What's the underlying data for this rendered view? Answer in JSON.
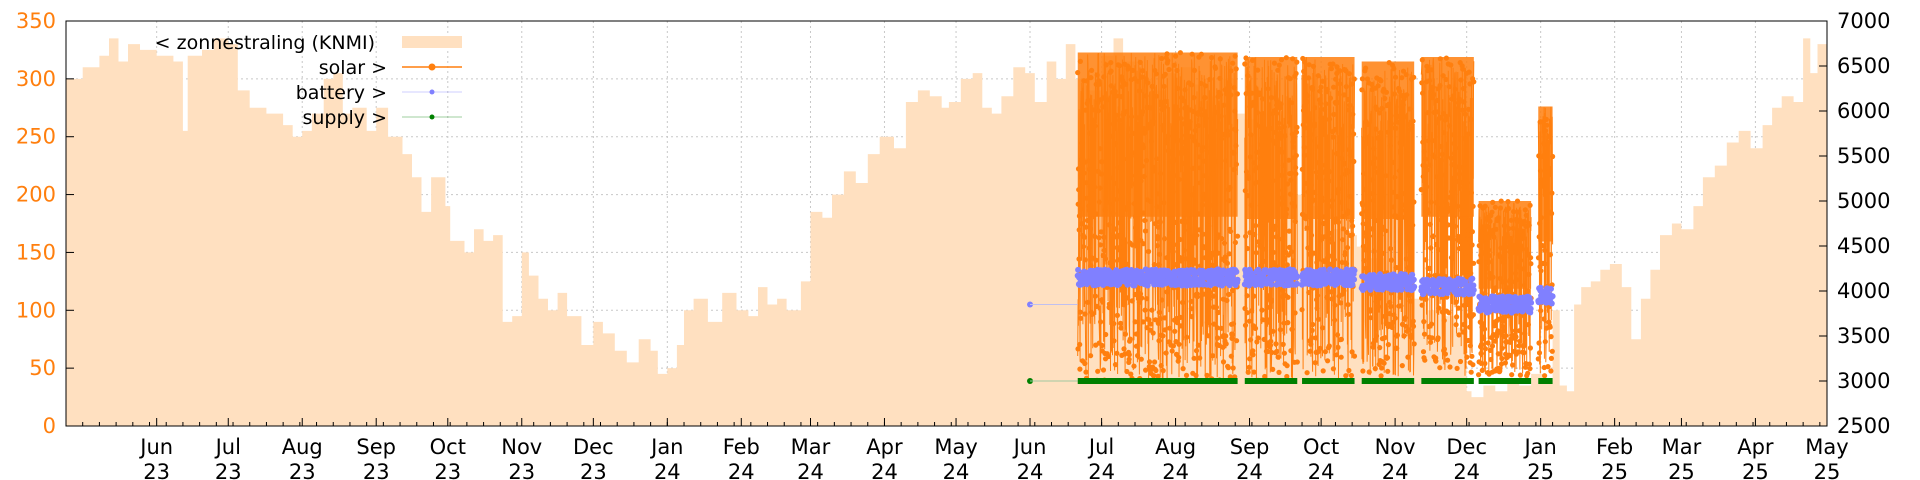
{
  "chart_data": {
    "type": "line",
    "grid": true,
    "legend_position": "top-left",
    "x_range": [
      "2023-04-24",
      "2025-05-01"
    ],
    "y_left": {
      "range": [
        0,
        350
      ],
      "ticks": [
        "0",
        "50",
        "100",
        "150",
        "200",
        "250",
        "300",
        "350"
      ],
      "color": "#ff7f0e"
    },
    "y_right": {
      "range": [
        2500,
        7000
      ],
      "ticks": [
        "2500",
        "3000",
        "3500",
        "4000",
        "4500",
        "5000",
        "5500",
        "6000",
        "6500",
        "7000"
      ]
    },
    "x_ticks": [
      {
        "m": "Jun",
        "y": "23",
        "date": "2023-06-01"
      },
      {
        "m": "Jul",
        "y": "23",
        "date": "2023-07-01"
      },
      {
        "m": "Aug",
        "y": "23",
        "date": "2023-08-01"
      },
      {
        "m": "Sep",
        "y": "23",
        "date": "2023-09-01"
      },
      {
        "m": "Oct",
        "y": "23",
        "date": "2023-10-01"
      },
      {
        "m": "Nov",
        "y": "23",
        "date": "2023-11-01"
      },
      {
        "m": "Dec",
        "y": "23",
        "date": "2023-12-01"
      },
      {
        "m": "Jan",
        "y": "24",
        "date": "2024-01-01"
      },
      {
        "m": "Feb",
        "y": "24",
        "date": "2024-02-01"
      },
      {
        "m": "Mar",
        "y": "24",
        "date": "2024-03-01"
      },
      {
        "m": "Apr",
        "y": "24",
        "date": "2024-04-01"
      },
      {
        "m": "May",
        "y": "24",
        "date": "2024-05-01"
      },
      {
        "m": "Jun",
        "y": "24",
        "date": "2024-06-01"
      },
      {
        "m": "Jul",
        "y": "24",
        "date": "2024-07-01"
      },
      {
        "m": "Aug",
        "y": "24",
        "date": "2024-08-01"
      },
      {
        "m": "Sep",
        "y": "24",
        "date": "2024-09-01"
      },
      {
        "m": "Oct",
        "y": "24",
        "date": "2024-10-01"
      },
      {
        "m": "Nov",
        "y": "24",
        "date": "2024-11-01"
      },
      {
        "m": "Dec",
        "y": "24",
        "date": "2024-12-01"
      },
      {
        "m": "Jan",
        "y": "25",
        "date": "2025-01-01"
      },
      {
        "m": "Feb",
        "y": "25",
        "date": "2025-02-01"
      },
      {
        "m": "Mar",
        "y": "25",
        "date": "2025-03-01"
      },
      {
        "m": "Apr",
        "y": "25",
        "date": "2025-04-01"
      },
      {
        "m": "May",
        "y": "25",
        "date": "2025-05-01"
      }
    ],
    "series": [
      {
        "name": "< zonnestraling (KNMI)",
        "axis": "left",
        "style": "area",
        "color": "#ffe0c0",
        "points": [
          [
            "2023-04-24",
            300
          ],
          [
            "2023-05-01",
            310
          ],
          [
            "2023-05-08",
            320
          ],
          [
            "2023-05-12",
            335
          ],
          [
            "2023-05-16",
            315
          ],
          [
            "2023-05-20",
            330
          ],
          [
            "2023-05-25",
            325
          ],
          [
            "2023-06-01",
            320
          ],
          [
            "2023-06-08",
            315
          ],
          [
            "2023-06-12",
            255
          ],
          [
            "2023-06-14",
            320
          ],
          [
            "2023-06-20",
            325
          ],
          [
            "2023-06-25",
            335
          ],
          [
            "2023-07-01",
            330
          ],
          [
            "2023-07-05",
            290
          ],
          [
            "2023-07-10",
            275
          ],
          [
            "2023-07-17",
            270
          ],
          [
            "2023-07-24",
            260
          ],
          [
            "2023-07-28",
            250
          ],
          [
            "2023-08-01",
            255
          ],
          [
            "2023-08-05",
            270
          ],
          [
            "2023-08-10",
            300
          ],
          [
            "2023-08-14",
            305
          ],
          [
            "2023-08-18",
            270
          ],
          [
            "2023-08-22",
            275
          ],
          [
            "2023-08-28",
            255
          ],
          [
            "2023-09-01",
            275
          ],
          [
            "2023-09-06",
            250
          ],
          [
            "2023-09-12",
            235
          ],
          [
            "2023-09-16",
            215
          ],
          [
            "2023-09-20",
            185
          ],
          [
            "2023-09-24",
            215
          ],
          [
            "2023-09-30",
            190
          ],
          [
            "2023-10-02",
            160
          ],
          [
            "2023-10-08",
            150
          ],
          [
            "2023-10-12",
            170
          ],
          [
            "2023-10-16",
            160
          ],
          [
            "2023-10-20",
            165
          ],
          [
            "2023-10-24",
            90
          ],
          [
            "2023-10-28",
            95
          ],
          [
            "2023-11-01",
            150
          ],
          [
            "2023-11-04",
            130
          ],
          [
            "2023-11-08",
            110
          ],
          [
            "2023-11-12",
            100
          ],
          [
            "2023-11-16",
            115
          ],
          [
            "2023-11-20",
            95
          ],
          [
            "2023-11-26",
            70
          ],
          [
            "2023-12-01",
            90
          ],
          [
            "2023-12-05",
            80
          ],
          [
            "2023-12-10",
            65
          ],
          [
            "2023-12-15",
            55
          ],
          [
            "2023-12-20",
            75
          ],
          [
            "2023-12-25",
            65
          ],
          [
            "2023-12-28",
            45
          ],
          [
            "2024-01-01",
            50
          ],
          [
            "2024-01-05",
            70
          ],
          [
            "2024-01-08",
            100
          ],
          [
            "2024-01-12",
            110
          ],
          [
            "2024-01-18",
            90
          ],
          [
            "2024-01-24",
            115
          ],
          [
            "2024-01-30",
            100
          ],
          [
            "2024-02-04",
            95
          ],
          [
            "2024-02-08",
            120
          ],
          [
            "2024-02-12",
            105
          ],
          [
            "2024-02-16",
            110
          ],
          [
            "2024-02-20",
            100
          ],
          [
            "2024-02-26",
            125
          ],
          [
            "2024-03-01",
            185
          ],
          [
            "2024-03-06",
            180
          ],
          [
            "2024-03-10",
            200
          ],
          [
            "2024-03-15",
            220
          ],
          [
            "2024-03-20",
            210
          ],
          [
            "2024-03-25",
            235
          ],
          [
            "2024-03-30",
            250
          ],
          [
            "2024-04-05",
            240
          ],
          [
            "2024-04-10",
            280
          ],
          [
            "2024-04-15",
            290
          ],
          [
            "2024-04-20",
            285
          ],
          [
            "2024-04-25",
            275
          ],
          [
            "2024-04-28",
            280
          ],
          [
            "2024-05-03",
            300
          ],
          [
            "2024-05-08",
            305
          ],
          [
            "2024-05-12",
            275
          ],
          [
            "2024-05-16",
            270
          ],
          [
            "2024-05-20",
            285
          ],
          [
            "2024-05-25",
            310
          ],
          [
            "2024-05-30",
            305
          ],
          [
            "2024-06-03",
            280
          ],
          [
            "2024-06-08",
            315
          ],
          [
            "2024-06-12",
            300
          ],
          [
            "2024-06-16",
            330
          ],
          [
            "2024-06-20",
            300
          ],
          [
            "2024-06-25",
            290
          ],
          [
            "2024-07-01",
            320
          ],
          [
            "2024-07-06",
            335
          ],
          [
            "2024-07-10",
            315
          ],
          [
            "2024-07-16",
            300
          ],
          [
            "2024-07-22",
            290
          ],
          [
            "2024-07-28",
            305
          ],
          [
            "2024-08-03",
            310
          ],
          [
            "2024-08-09",
            295
          ],
          [
            "2024-08-15",
            285
          ],
          [
            "2024-08-21",
            300
          ],
          [
            "2024-08-26",
            270
          ],
          [
            "2024-08-30",
            265
          ],
          [
            "2024-09-05",
            250
          ],
          [
            "2024-09-10",
            230
          ],
          [
            "2024-09-15",
            215
          ],
          [
            "2024-09-20",
            200
          ],
          [
            "2024-09-25",
            190
          ],
          [
            "2024-10-01",
            180
          ],
          [
            "2024-10-06",
            170
          ],
          [
            "2024-10-11",
            165
          ],
          [
            "2024-10-16",
            155
          ],
          [
            "2024-10-22",
            145
          ],
          [
            "2024-10-28",
            125
          ],
          [
            "2024-11-03",
            120
          ],
          [
            "2024-11-09",
            110
          ],
          [
            "2024-11-15",
            100
          ],
          [
            "2024-11-21",
            95
          ],
          [
            "2024-11-27",
            85
          ],
          [
            "2024-12-01",
            30
          ],
          [
            "2024-12-03",
            25
          ],
          [
            "2024-12-08",
            35
          ],
          [
            "2024-12-13",
            30
          ],
          [
            "2024-12-18",
            40
          ],
          [
            "2024-12-23",
            35
          ],
          [
            "2024-12-28",
            45
          ],
          [
            "2025-01-02",
            40
          ],
          [
            "2025-01-06",
            100
          ],
          [
            "2025-01-09",
            35
          ],
          [
            "2025-01-12",
            30
          ],
          [
            "2025-01-15",
            105
          ],
          [
            "2025-01-18",
            120
          ],
          [
            "2025-01-22",
            125
          ],
          [
            "2025-01-26",
            135
          ],
          [
            "2025-01-30",
            140
          ],
          [
            "2025-02-04",
            120
          ],
          [
            "2025-02-08",
            75
          ],
          [
            "2025-02-12",
            110
          ],
          [
            "2025-02-16",
            135
          ],
          [
            "2025-02-20",
            165
          ],
          [
            "2025-02-25",
            175
          ],
          [
            "2025-03-01",
            170
          ],
          [
            "2025-03-06",
            190
          ],
          [
            "2025-03-10",
            215
          ],
          [
            "2025-03-15",
            225
          ],
          [
            "2025-03-20",
            245
          ],
          [
            "2025-03-25",
            255
          ],
          [
            "2025-03-30",
            240
          ],
          [
            "2025-04-04",
            260
          ],
          [
            "2025-04-08",
            275
          ],
          [
            "2025-04-12",
            285
          ],
          [
            "2025-04-17",
            280
          ],
          [
            "2025-04-21",
            335
          ],
          [
            "2025-04-24",
            305
          ],
          [
            "2025-04-27",
            330
          ],
          [
            "2025-05-01",
            340
          ]
        ]
      },
      {
        "name": "solar >",
        "axis": "right",
        "style": "linespoints",
        "color": "#ff7f0e",
        "segments": [
          {
            "start": "2024-06-21",
            "end": "2024-08-27",
            "high": 6650,
            "low": 3000
          },
          {
            "start": "2024-08-30",
            "end": "2024-09-21",
            "high": 6600,
            "low": 3000
          },
          {
            "start": "2024-09-23",
            "end": "2024-10-15",
            "high": 6600,
            "low": 3000
          },
          {
            "start": "2024-10-18",
            "end": "2024-11-09",
            "high": 6550,
            "low": 3050
          },
          {
            "start": "2024-11-12",
            "end": "2024-12-04",
            "high": 6600,
            "low": 3050
          },
          {
            "start": "2024-12-06",
            "end": "2024-12-28",
            "high": 5000,
            "low": 3050
          },
          {
            "start": "2024-12-31",
            "end": "2025-01-06",
            "high": 6050,
            "low": 3050
          }
        ]
      },
      {
        "name": "battery >",
        "axis": "right",
        "style": "points",
        "color": "#8080ff",
        "points": [
          [
            "2024-06-01",
            3850
          ]
        ],
        "segments": [
          {
            "start": "2024-06-21",
            "end": "2024-08-27",
            "value": 4150
          },
          {
            "start": "2024-08-30",
            "end": "2024-09-21",
            "value": 4150
          },
          {
            "start": "2024-09-23",
            "end": "2024-10-15",
            "value": 4150
          },
          {
            "start": "2024-10-18",
            "end": "2024-11-09",
            "value": 4100
          },
          {
            "start": "2024-11-12",
            "end": "2024-12-04",
            "value": 4050
          },
          {
            "start": "2024-12-06",
            "end": "2024-12-28",
            "value": 3850
          },
          {
            "start": "2024-12-31",
            "end": "2025-01-06",
            "value": 3950
          }
        ]
      },
      {
        "name": "supply >",
        "axis": "right",
        "style": "points",
        "color": "#008000",
        "points": [
          [
            "2024-06-01",
            3000
          ]
        ],
        "segments": [
          {
            "start": "2024-06-21",
            "end": "2024-08-27",
            "value": 3000
          },
          {
            "start": "2024-08-30",
            "end": "2024-09-21",
            "value": 3000
          },
          {
            "start": "2024-09-23",
            "end": "2024-10-15",
            "value": 3000
          },
          {
            "start": "2024-10-18",
            "end": "2024-11-09",
            "value": 3000
          },
          {
            "start": "2024-11-12",
            "end": "2024-12-04",
            "value": 3000
          },
          {
            "start": "2024-12-06",
            "end": "2024-12-28",
            "value": 3000
          },
          {
            "start": "2024-12-31",
            "end": "2025-01-06",
            "value": 3000
          }
        ]
      }
    ]
  }
}
